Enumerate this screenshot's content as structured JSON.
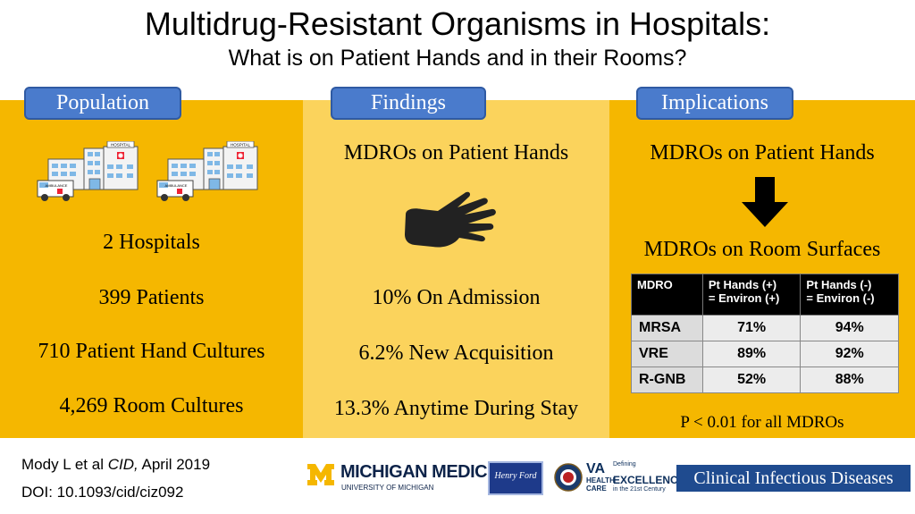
{
  "header": {
    "title": "Multidrug-Resistant Organisms in Hospitals:",
    "subtitle": "What is on Patient Hands and in their Rooms?"
  },
  "tabs": {
    "population": "Population",
    "findings": "Findings",
    "implications": "Implications"
  },
  "population": {
    "ambulance_label": "AMBULANCE",
    "hospital_label": "HOSPITAL",
    "stats": [
      "2  Hospitals",
      "399  Patients",
      "710  Patient Hand Cultures",
      "4,269  Room Cultures"
    ]
  },
  "findings": {
    "heading": "MDROs on Patient Hands",
    "stats": [
      "10% On Admission",
      "6.2% New Acquisition",
      "13.3% Anytime During Stay"
    ]
  },
  "implications": {
    "heading_top": "MDROs on Patient Hands",
    "heading_bottom": "MDROs on Room Surfaces",
    "table": {
      "headers": [
        "MDRO",
        "Pt Hands (+)\n= Environ (+)",
        "Pt Hands (-)\n= Environ (-)"
      ],
      "rows": [
        [
          "MRSA",
          "71%",
          "94%"
        ],
        [
          "VRE",
          "89%",
          "92%"
        ],
        [
          "R-GNB",
          "52%",
          "88%"
        ]
      ]
    },
    "pvalue": "P < 0.01 for all MDROs"
  },
  "footer": {
    "citation_author": "Mody L et al ",
    "citation_journal": "CID,",
    "citation_date": " April 2019",
    "doi": "DOI: 10.1093/cid/ciz092",
    "michigan": "MICHIGAN MEDICINE",
    "michigan_sub": "UNIVERSITY OF MICHIGAN",
    "henry_ford": "Henry Ford",
    "va": "VA",
    "va_hc": "HEALTH CARE",
    "va_defining": "Defining",
    "va_excellence": "EXCELLENCE",
    "va_century": "in the 21st Century",
    "cid": "Clinical Infectious Diseases"
  },
  "colors": {
    "panel_dark": "#f5b700",
    "panel_light": "#fbd35c",
    "tab_blue": "#4a7bcc",
    "cid_blue": "#1f4b8f"
  }
}
